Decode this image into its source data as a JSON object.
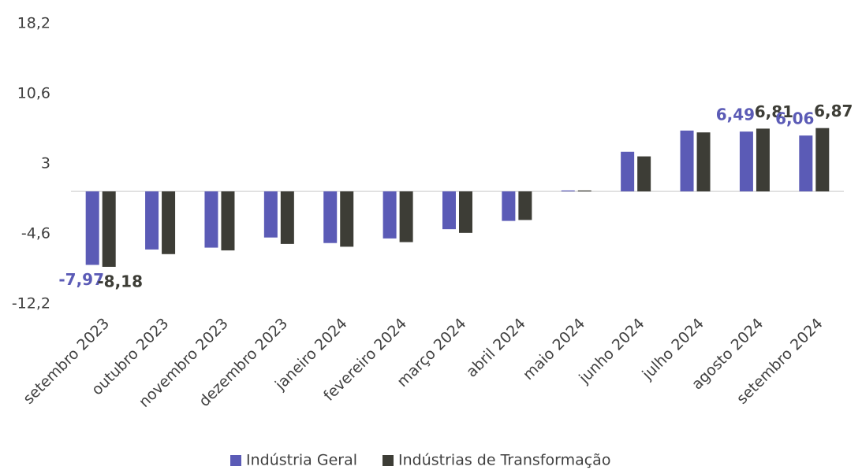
{
  "chart_data": {
    "type": "bar",
    "categories": [
      "setembro 2023",
      "outubro 2023",
      "novembro 2023",
      "dezembro 2023",
      "janeiro 2024",
      "fevereiro 2024",
      "março 2024",
      "abril 2024",
      "maio 2024",
      "junho 2024",
      "julho 2024",
      "agosto 2024",
      "setembro 2024"
    ],
    "series": [
      {
        "name": "Indústria Geral",
        "color": "#5b5bb6",
        "values": [
          -7.97,
          -6.3,
          -6.1,
          -5.0,
          -5.6,
          -5.1,
          -4.1,
          -3.2,
          0.1,
          4.3,
          6.6,
          6.49,
          6.06
        ],
        "value_labels": [
          "-7,97",
          null,
          null,
          null,
          null,
          null,
          null,
          null,
          null,
          null,
          null,
          "6,49",
          "6,06"
        ]
      },
      {
        "name": "Indústrias de Transformação",
        "color": "#3d3d36",
        "values": [
          -8.18,
          -6.8,
          -6.4,
          -5.7,
          -6.0,
          -5.5,
          -4.5,
          -3.1,
          0.1,
          3.8,
          6.4,
          6.81,
          6.87
        ],
        "value_labels": [
          "-8,18",
          null,
          null,
          null,
          null,
          null,
          null,
          null,
          null,
          null,
          null,
          "6,81",
          "6,87"
        ]
      }
    ],
    "ylim": [
      -12.2,
      18.2
    ],
    "yticks": [
      {
        "value": -12.2,
        "label": "-12,2"
      },
      {
        "value": -4.6,
        "label": "-4,6"
      },
      3,
      {
        "value": 10.6,
        "label": "10,6"
      },
      {
        "value": 18.2,
        "label": "18,2"
      }
    ],
    "grid": false,
    "legend": "bottom"
  }
}
